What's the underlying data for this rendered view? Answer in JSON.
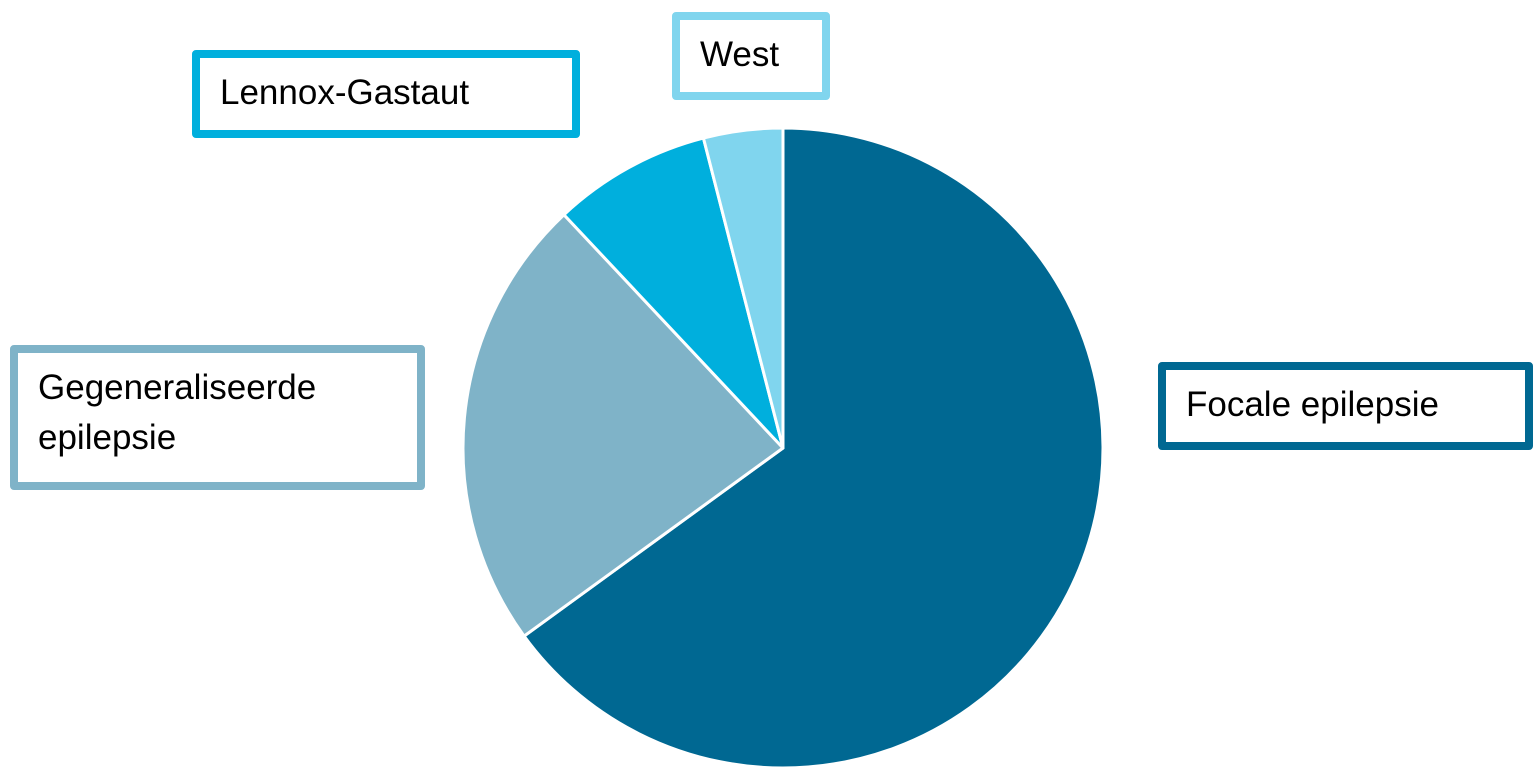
{
  "chart_data": {
    "type": "pie",
    "categories": [
      "Focale epilepsie",
      "Gegeneraliseerde epilepsie",
      "Lennox-Gastaut",
      "West"
    ],
    "values": [
      65,
      23,
      8,
      4
    ],
    "colors": [
      "#006892",
      "#7fb3c8",
      "#00afdd",
      "#80d5ee"
    ],
    "start_angle": 0,
    "direction": "clockwise"
  }
}
